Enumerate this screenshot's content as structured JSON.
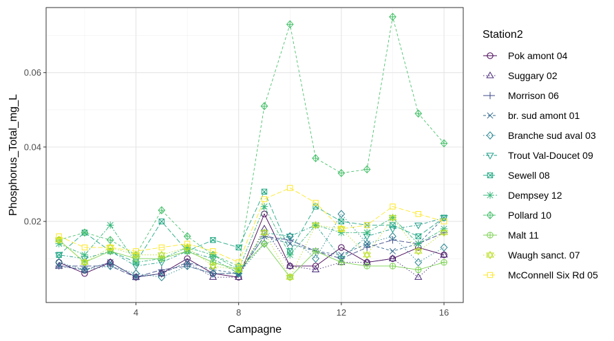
{
  "chart_data": {
    "type": "line",
    "xlabel": "Campagne",
    "ylabel": "Phosphorus_Total_mg_L",
    "xlim": [
      0.5,
      16.75
    ],
    "ylim": [
      -0.0018,
      0.0775
    ],
    "xticks": [
      4,
      8,
      12,
      16
    ],
    "xtick_labels": [
      "4",
      "8",
      "12",
      "16"
    ],
    "yticks": [
      0.02,
      0.04,
      0.06
    ],
    "ytick_labels": [
      "0.02",
      "0.04",
      "0.06"
    ],
    "grid": true,
    "legend_title": "Station2",
    "legend_position": "right",
    "x": [
      1,
      2,
      3,
      4,
      5,
      6,
      7,
      8,
      9,
      10,
      11,
      12,
      13,
      14,
      15,
      16
    ],
    "series": [
      {
        "name": "Pok amont 04",
        "color": "#440154",
        "marker": "circle",
        "dash": "solid",
        "values": [
          0.009,
          0.006,
          0.009,
          0.005,
          0.006,
          0.01,
          0.006,
          0.005,
          0.022,
          0.008,
          0.008,
          0.013,
          0.009,
          0.01,
          0.013,
          0.011
        ]
      },
      {
        "name": "Suggary 02",
        "color": "#482878",
        "marker": "triangle-up",
        "dash": "dotted",
        "values": [
          0.008,
          0.007,
          0.009,
          0.005,
          0.006,
          0.009,
          0.005,
          0.005,
          0.018,
          0.008,
          0.007,
          0.009,
          0.009,
          0.01,
          0.005,
          0.011
        ]
      },
      {
        "name": "Morrison 06",
        "color": "#3E4A89",
        "marker": "plus",
        "dash": "longdash",
        "values": [
          0.008,
          0.008,
          0.008,
          0.005,
          0.007,
          0.008,
          0.006,
          0.006,
          0.016,
          0.015,
          0.012,
          0.01,
          0.013,
          0.015,
          0.014,
          0.017
        ]
      },
      {
        "name": "br. sud amont 01",
        "color": "#31688E",
        "marker": "cross",
        "dash": "dashed",
        "values": [
          0.008,
          0.007,
          0.009,
          0.005,
          0.006,
          0.009,
          0.007,
          0.006,
          0.016,
          0.014,
          0.012,
          0.011,
          0.014,
          0.012,
          0.014,
          0.021
        ]
      },
      {
        "name": "Branche sud aval 03",
        "color": "#26828E",
        "marker": "diamond",
        "dash": "dotted",
        "values": [
          0.009,
          0.007,
          0.008,
          0.006,
          0.005,
          0.008,
          0.006,
          0.006,
          0.014,
          0.016,
          0.01,
          0.022,
          0.014,
          0.016,
          0.009,
          0.013
        ]
      },
      {
        "name": "Trout Val-Doucet 09",
        "color": "#1F9E89",
        "marker": "triangle-down",
        "dash": "dotdash",
        "values": [
          0.011,
          0.01,
          0.012,
          0.008,
          0.009,
          0.012,
          0.01,
          0.006,
          0.017,
          0.016,
          0.019,
          0.01,
          0.016,
          0.018,
          0.019,
          0.021
        ]
      },
      {
        "name": "Sewell 08",
        "color": "#22A884",
        "marker": "square-x",
        "dash": "longdash",
        "values": [
          0.011,
          0.017,
          0.012,
          0.009,
          0.02,
          0.012,
          0.015,
          0.013,
          0.028,
          0.012,
          0.024,
          0.02,
          0.019,
          0.019,
          0.016,
          0.021
        ]
      },
      {
        "name": "Dempsey 12",
        "color": "#35B779",
        "marker": "asterisk",
        "dash": "twodash",
        "values": [
          0.014,
          0.011,
          0.019,
          0.009,
          0.01,
          0.013,
          0.011,
          0.007,
          0.024,
          0.011,
          0.019,
          0.017,
          0.017,
          0.021,
          0.014,
          0.018
        ]
      },
      {
        "name": "Pollard 10",
        "color": "#4AC16D",
        "marker": "diamond-plus",
        "dash": "dashed",
        "values": [
          0.015,
          0.017,
          0.015,
          0.011,
          0.023,
          0.016,
          0.011,
          0.008,
          0.051,
          0.073,
          0.037,
          0.033,
          0.034,
          0.075,
          0.049,
          0.041
        ]
      },
      {
        "name": "Malt 11",
        "color": "#7AD151",
        "marker": "circle-plus",
        "dash": "solid",
        "values": [
          0.015,
          0.009,
          0.012,
          0.01,
          0.01,
          0.012,
          0.009,
          0.007,
          0.014,
          0.005,
          0.012,
          0.009,
          0.008,
          0.008,
          0.007,
          0.009
        ]
      },
      {
        "name": "Waugh sanct. 07",
        "color": "#BBDF27",
        "marker": "star",
        "dash": "dotted",
        "values": [
          0.015,
          0.009,
          0.013,
          0.011,
          0.011,
          0.013,
          0.008,
          0.007,
          0.017,
          0.005,
          0.019,
          0.018,
          0.011,
          0.021,
          0.012,
          0.017
        ]
      },
      {
        "name": "McConnell Six Rd 05",
        "color": "#FDE725",
        "marker": "square",
        "dash": "longdash",
        "values": [
          0.016,
          0.013,
          0.013,
          0.012,
          0.013,
          0.014,
          0.012,
          0.009,
          0.026,
          0.029,
          0.025,
          0.018,
          0.019,
          0.024,
          0.022,
          0.02
        ]
      }
    ]
  }
}
